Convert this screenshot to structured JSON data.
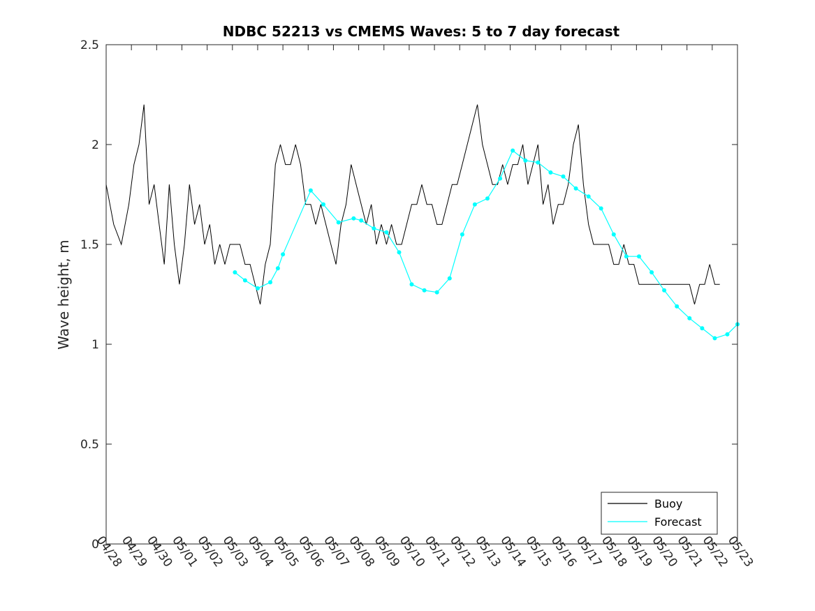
{
  "chart_data": {
    "type": "line",
    "title": "NDBC 52213 vs CMEMS Waves: 5 to 7 day forecast",
    "xlabel": "",
    "ylabel": "Wave height, m",
    "xlim": [
      0,
      25
    ],
    "ylim": [
      0,
      2.5
    ],
    "x_tick_labels": [
      "04/28",
      "04/29",
      "04/30",
      "05/01",
      "05/02",
      "05/03",
      "05/04",
      "05/05",
      "05/06",
      "05/07",
      "05/08",
      "05/09",
      "05/10",
      "05/11",
      "05/12",
      "05/13",
      "05/14",
      "05/15",
      "05/16",
      "05/17",
      "05/18",
      "05/19",
      "05/20",
      "05/21",
      "05/22",
      "05/23"
    ],
    "y_ticks": [
      0,
      0.5,
      1,
      1.5,
      2,
      2.5
    ],
    "y_tick_labels": [
      "0",
      "0.5",
      "1",
      "1.5",
      "2",
      "2.5"
    ],
    "grid": false,
    "legend_position": "bottom-right",
    "colors": {
      "buoy": "#000000",
      "forecast": "#00ffff"
    },
    "series": [
      {
        "name": "Buoy",
        "x": [
          0,
          0.3,
          0.6,
          0.9,
          1.1,
          1.3,
          1.5,
          1.7,
          1.9,
          2.1,
          2.3,
          2.5,
          2.7,
          2.9,
          3.1,
          3.3,
          3.5,
          3.7,
          3.9,
          4.1,
          4.3,
          4.5,
          4.7,
          4.9,
          5.1,
          5.3,
          5.5,
          5.7,
          5.9,
          6.1,
          6.3,
          6.5,
          6.7,
          6.9,
          7.1,
          7.3,
          7.5,
          7.7,
          7.9,
          8.1,
          8.3,
          8.5,
          8.7,
          8.9,
          9.1,
          9.3,
          9.5,
          9.7,
          9.9,
          10.1,
          10.3,
          10.5,
          10.7,
          10.9,
          11.1,
          11.3,
          11.5,
          11.7,
          11.9,
          12.1,
          12.3,
          12.5,
          12.7,
          12.9,
          13.1,
          13.3,
          13.5,
          13.7,
          13.9,
          14.1,
          14.3,
          14.5,
          14.7,
          14.9,
          15.1,
          15.3,
          15.5,
          15.7,
          15.9,
          16.1,
          16.3,
          16.5,
          16.7,
          16.9,
          17.1,
          17.3,
          17.5,
          17.7,
          17.9,
          18.1,
          18.3,
          18.5,
          18.7,
          18.9,
          19.1,
          19.3,
          19.5,
          19.7,
          19.9,
          20.1,
          20.3,
          20.5,
          20.7,
          20.9,
          21.1,
          21.3,
          21.5,
          21.7,
          21.9,
          22.1,
          22.3,
          22.5,
          22.7,
          22.9,
          23.1,
          23.3,
          23.5,
          23.7,
          23.9,
          24.1,
          24.3
        ],
        "values": [
          1.8,
          1.6,
          1.5,
          1.7,
          1.9,
          2.0,
          2.2,
          1.7,
          1.8,
          1.6,
          1.4,
          1.8,
          1.5,
          1.3,
          1.5,
          1.8,
          1.6,
          1.7,
          1.5,
          1.6,
          1.4,
          1.5,
          1.4,
          1.5,
          1.5,
          1.5,
          1.4,
          1.4,
          1.3,
          1.2,
          1.4,
          1.5,
          1.9,
          2.0,
          1.9,
          1.9,
          2.0,
          1.9,
          1.7,
          1.7,
          1.6,
          1.7,
          1.6,
          1.5,
          1.4,
          1.6,
          1.7,
          1.9,
          1.8,
          1.7,
          1.6,
          1.7,
          1.5,
          1.6,
          1.5,
          1.6,
          1.5,
          1.5,
          1.6,
          1.7,
          1.7,
          1.8,
          1.7,
          1.7,
          1.6,
          1.6,
          1.7,
          1.8,
          1.8,
          1.9,
          2.0,
          2.1,
          2.2,
          2.0,
          1.9,
          1.8,
          1.8,
          1.9,
          1.8,
          1.9,
          1.9,
          2.0,
          1.8,
          1.9,
          2.0,
          1.7,
          1.8,
          1.6,
          1.7,
          1.7,
          1.8,
          2.0,
          2.1,
          1.8,
          1.6,
          1.5,
          1.5,
          1.5,
          1.5,
          1.4,
          1.4,
          1.5,
          1.4,
          1.4,
          1.3,
          1.3,
          1.3,
          1.3,
          1.3,
          1.3,
          1.3,
          1.3,
          1.3,
          1.3,
          1.3,
          1.2,
          1.3,
          1.3,
          1.4,
          1.3,
          1.3
        ]
      },
      {
        "name": "Forecast",
        "x": [
          5.1,
          5.5,
          6.0,
          6.5,
          6.8,
          7.0,
          8.1,
          8.6,
          9.2,
          9.8,
          10.1,
          10.6,
          11.1,
          11.6,
          12.1,
          12.6,
          13.1,
          13.6,
          14.1,
          14.6,
          15.1,
          15.6,
          16.1,
          16.6,
          17.1,
          17.6,
          18.1,
          18.6,
          19.1,
          19.6,
          20.1,
          20.6,
          21.1,
          21.6,
          22.1,
          22.6,
          23.1,
          23.6,
          24.1,
          24.6,
          25.0
        ],
        "values": [
          1.36,
          1.32,
          1.28,
          1.31,
          1.38,
          1.45,
          1.77,
          1.7,
          1.61,
          1.63,
          1.62,
          1.58,
          1.56,
          1.46,
          1.3,
          1.27,
          1.26,
          1.33,
          1.55,
          1.7,
          1.73,
          1.83,
          1.97,
          1.92,
          1.91,
          1.86,
          1.84,
          1.78,
          1.74,
          1.68,
          1.55,
          1.44,
          1.44,
          1.36,
          1.27,
          1.19,
          1.13,
          1.08,
          1.03,
          1.05,
          1.1
        ]
      }
    ]
  }
}
